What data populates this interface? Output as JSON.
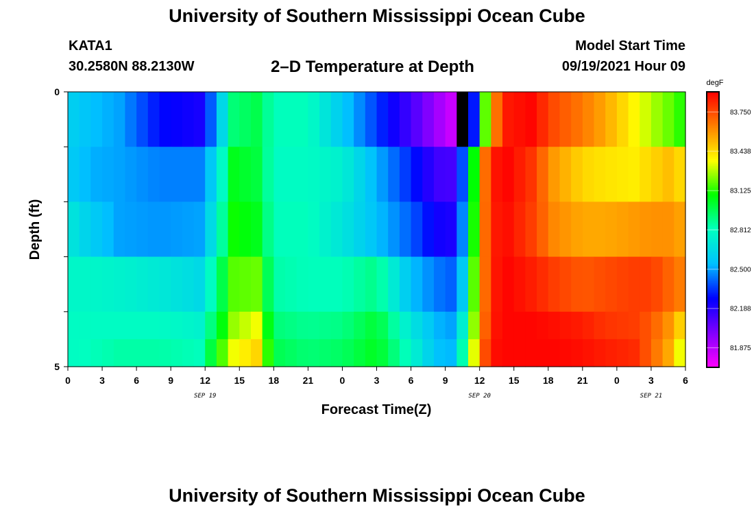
{
  "header": {
    "title": "University of Southern Mississippi Ocean Cube",
    "station_id": "KATA1",
    "station_coords": "30.2580N  88.2130W",
    "chart_title": "2–D Temperature at Depth",
    "start_label": "Model Start Time",
    "start_value": "09/19/2021 Hour 09"
  },
  "footer": {
    "title": "University of Southern Mississippi Ocean Cube"
  },
  "colors": {
    "scale": [
      "#ff00ff",
      "#8000ff",
      "#0000ff",
      "#00c0ff",
      "#00ffc0",
      "#00ff00",
      "#ffff00",
      "#ff8000",
      "#ff0000"
    ],
    "missing": "#000000"
  },
  "chart_data": {
    "type": "heatmap",
    "xlabel": "Forecast Time(Z)",
    "ylabel": "Depth (ft)",
    "unit": "degF",
    "x_tick_labels": [
      "0",
      "3",
      "6",
      "9",
      "12",
      "15",
      "18",
      "21",
      "0",
      "3",
      "6",
      "9",
      "12",
      "15",
      "18",
      "21",
      "0",
      "3",
      "6"
    ],
    "x_range_hours": [
      0,
      54
    ],
    "date_labels": [
      {
        "label": "SEP 19",
        "at_hour": 12
      },
      {
        "label": "SEP 20",
        "at_hour": 36
      },
      {
        "label": "SEP 21",
        "at_hour": 51
      }
    ],
    "y_tick_labels": [
      "0",
      "5"
    ],
    "y_range": [
      0,
      5
    ],
    "depth_bands": [
      0,
      1,
      2,
      3,
      4,
      4.5
    ],
    "colorbar_labels": [
      "83.750",
      "83.438",
      "83.125",
      "82.812",
      "82.500",
      "82.188",
      "81.875"
    ],
    "colorbar_range": [
      81.72,
      83.91
    ],
    "missing_cell": {
      "hour": 34,
      "depth_band": 0
    },
    "keyframes_hours": [
      0,
      2,
      4.5,
      8,
      11.5,
      12.8,
      14.5,
      16.5,
      18,
      21,
      24,
      27,
      30,
      32,
      33.3,
      34,
      34.6,
      35.3,
      36,
      37,
      38.5,
      40.5,
      42.5,
      45,
      47,
      49.5,
      51,
      52.5,
      54
    ],
    "rows": [
      [
        82.62,
        82.55,
        82.5,
        82.28,
        82.22,
        82.45,
        82.92,
        82.98,
        82.82,
        82.82,
        82.58,
        82.35,
        82.12,
        81.95,
        81.85,
        81.82,
        81.9,
        82.1,
        82.8,
        83.58,
        83.86,
        83.9,
        83.75,
        83.65,
        83.55,
        83.38,
        83.28,
        83.2,
        83.1
      ],
      [
        82.6,
        82.52,
        82.5,
        82.45,
        82.45,
        82.62,
        83.05,
        83.0,
        82.8,
        82.8,
        82.75,
        82.52,
        82.32,
        82.15,
        82.1,
        82.18,
        82.42,
        82.92,
        83.5,
        83.86,
        83.9,
        83.8,
        83.58,
        83.45,
        83.42,
        83.4,
        83.45,
        83.5,
        83.42
      ],
      [
        82.72,
        82.6,
        82.5,
        82.48,
        82.5,
        82.7,
        83.1,
        83.05,
        82.82,
        82.82,
        82.7,
        82.55,
        82.4,
        82.25,
        82.2,
        82.25,
        82.5,
        82.95,
        83.52,
        83.85,
        83.88,
        83.78,
        83.62,
        83.55,
        83.55,
        83.58,
        83.6,
        83.6,
        83.55
      ],
      [
        82.78,
        82.78,
        82.76,
        82.72,
        82.65,
        82.85,
        83.18,
        83.2,
        82.85,
        82.82,
        82.82,
        82.9,
        82.55,
        82.45,
        82.4,
        82.42,
        82.62,
        83.05,
        83.52,
        83.85,
        83.9,
        83.85,
        83.78,
        83.72,
        83.75,
        83.78,
        83.78,
        83.7,
        83.62
      ],
      [
        82.8,
        82.8,
        82.8,
        82.8,
        82.76,
        82.95,
        83.25,
        83.35,
        82.92,
        82.88,
        82.9,
        83.02,
        82.7,
        82.55,
        82.48,
        82.55,
        82.78,
        83.12,
        83.55,
        83.86,
        83.9,
        83.9,
        83.88,
        83.85,
        83.8,
        83.78,
        83.72,
        83.6,
        83.4
      ],
      [
        82.8,
        82.82,
        82.85,
        82.85,
        82.82,
        83.05,
        83.35,
        83.45,
        82.98,
        82.92,
        82.95,
        83.05,
        82.78,
        82.58,
        82.5,
        82.62,
        82.88,
        83.22,
        83.62,
        83.88,
        83.9,
        83.9,
        83.9,
        83.88,
        83.85,
        83.82,
        83.7,
        83.55,
        83.25
      ]
    ]
  }
}
